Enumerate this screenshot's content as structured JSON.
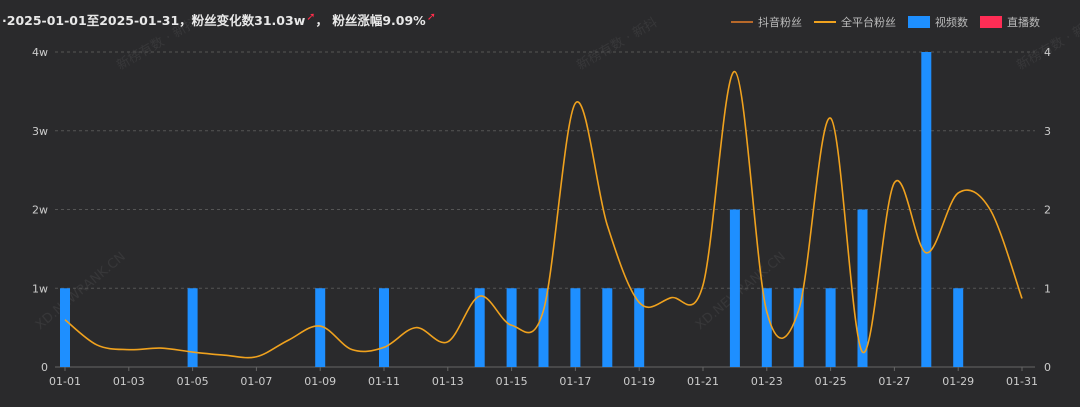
{
  "summary": {
    "prefix": "·2025-01-01至2025-01-31，粉丝变化数31.03w",
    "sep": "，  粉丝涨幅9.09%",
    "up_icon": "red-up-arrow-icon"
  },
  "legend": [
    {
      "label": "抖音粉丝",
      "color": "#b8692a",
      "kind": "line"
    },
    {
      "label": "全平台粉丝",
      "color": "#f0a21e",
      "kind": "line"
    },
    {
      "label": "视频数",
      "color": "#1e8fff",
      "kind": "box"
    },
    {
      "label": "直播数",
      "color": "#ff2d55",
      "kind": "box"
    }
  ],
  "watermarks": [
    "新榜有数 · 新抖",
    "XD.NEWRANK.CN"
  ],
  "chart_data": {
    "type": "bar+line",
    "x": [
      "01-01",
      "01-02",
      "01-03",
      "01-04",
      "01-05",
      "01-06",
      "01-07",
      "01-08",
      "01-09",
      "01-10",
      "01-11",
      "01-12",
      "01-13",
      "01-14",
      "01-15",
      "01-16",
      "01-17",
      "01-18",
      "01-19",
      "01-20",
      "01-21",
      "01-22",
      "01-23",
      "01-24",
      "01-25",
      "01-26",
      "01-27",
      "01-28",
      "01-29",
      "01-30",
      "01-31"
    ],
    "x_tick_labels": [
      "01-01",
      "01-03",
      "01-05",
      "01-07",
      "01-09",
      "01-11",
      "01-13",
      "01-15",
      "01-17",
      "01-19",
      "01-21",
      "01-23",
      "01-25",
      "01-27",
      "01-29",
      "01-31"
    ],
    "y_left": {
      "ticks": [
        "0",
        "1w",
        "2w",
        "3w",
        "4w"
      ],
      "range": [
        0,
        4
      ]
    },
    "y_right": {
      "ticks": [
        "0",
        "1",
        "2",
        "3",
        "4"
      ],
      "range": [
        0,
        4
      ]
    },
    "series": [
      {
        "name": "全平台粉丝",
        "axis": "left",
        "unit": "w",
        "type": "line",
        "values": [
          0.6,
          0.28,
          0.22,
          0.24,
          0.19,
          0.15,
          0.13,
          0.34,
          0.52,
          0.22,
          0.25,
          0.5,
          0.32,
          0.9,
          0.53,
          0.72,
          3.35,
          1.8,
          0.82,
          0.88,
          1.04,
          3.75,
          0.7,
          0.72,
          3.16,
          0.19,
          2.34,
          1.45,
          2.21,
          2.0,
          0.87
        ]
      },
      {
        "name": "视频数",
        "axis": "right",
        "type": "bar",
        "values": [
          1,
          0,
          0,
          0,
          1,
          0,
          0,
          0,
          1,
          0,
          1,
          0,
          0,
          1,
          1,
          1,
          1,
          1,
          1,
          0,
          0,
          2,
          1,
          1,
          1,
          2,
          0,
          4,
          1,
          0,
          0
        ]
      },
      {
        "name": "直播数",
        "axis": "right",
        "type": "bar",
        "values": [
          0,
          0,
          0,
          0,
          0,
          0,
          0,
          0,
          0,
          0,
          0,
          0,
          0,
          0,
          0,
          0,
          0,
          0,
          0,
          0,
          0,
          0,
          0,
          0,
          0,
          0,
          0,
          0,
          0,
          0,
          0
        ]
      }
    ],
    "grid": true,
    "legend_position": "top-right"
  }
}
